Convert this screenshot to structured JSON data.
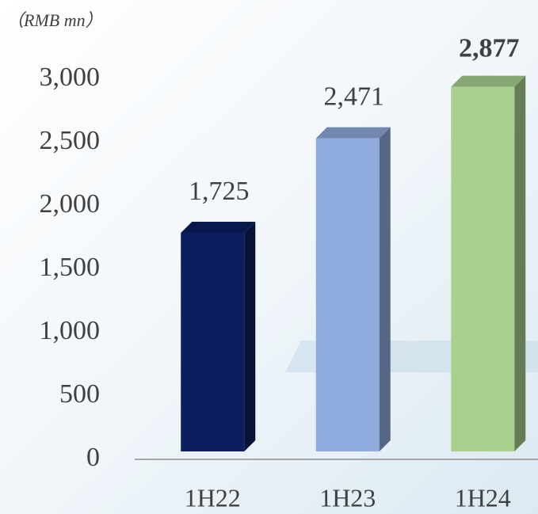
{
  "chart_data": {
    "type": "bar3d",
    "title": "（RMB mn）",
    "categories": [
      "1H22",
      "1H23",
      "1H24"
    ],
    "values": [
      1725,
      2471,
      2877
    ],
    "value_labels": [
      "1,725",
      "2,471",
      "2,877"
    ],
    "colors": [
      "#0b1f5e",
      "#8faadc",
      "#a9d18e"
    ],
    "ylim": [
      0,
      3000
    ],
    "yticks": [
      0,
      500,
      {
        "value": 1000,
        "label": "1,000"
      },
      {
        "value": 1500,
        "label": "1,500"
      },
      {
        "value": 2000,
        "label": "2,000"
      },
      {
        "value": 2500,
        "label": "2,500"
      },
      {
        "value": 3000,
        "label": "3,000"
      }
    ],
    "grid": false
  }
}
